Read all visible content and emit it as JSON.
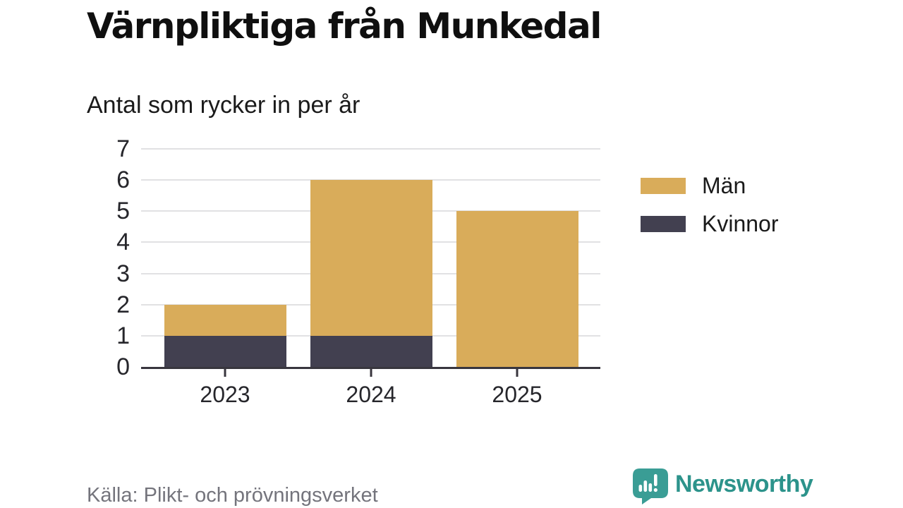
{
  "chart_data": {
    "type": "bar",
    "stacked": true,
    "title": "Värnpliktiga från Munkedal",
    "subtitle": "Antal som rycker in per år",
    "categories": [
      "2023",
      "2024",
      "2025"
    ],
    "series": [
      {
        "name": "Kvinnor",
        "color": "#424050",
        "values": [
          1,
          1,
          0
        ]
      },
      {
        "name": "Män",
        "color": "#D9AC5A",
        "values": [
          1,
          5,
          5
        ]
      }
    ],
    "totals": [
      2,
      6,
      5
    ],
    "legend_order": [
      "Män",
      "Kvinnor"
    ],
    "legend_position": "right",
    "xlabel": "",
    "ylabel": "",
    "ylim": [
      0,
      7
    ],
    "yticks": [
      0,
      1,
      2,
      3,
      4,
      5,
      6,
      7
    ],
    "grid": "horizontal",
    "grid_color": "#e1e1e3",
    "axis_color": "#38363e"
  },
  "source": {
    "label": "Källa: Plikt- och prövningsverket"
  },
  "branding": {
    "name": "Newsworthy",
    "icon": "newsworthy-speech-bubble-barchart-icon",
    "color": "#2c938b",
    "icon_color": "#3a9d95"
  }
}
